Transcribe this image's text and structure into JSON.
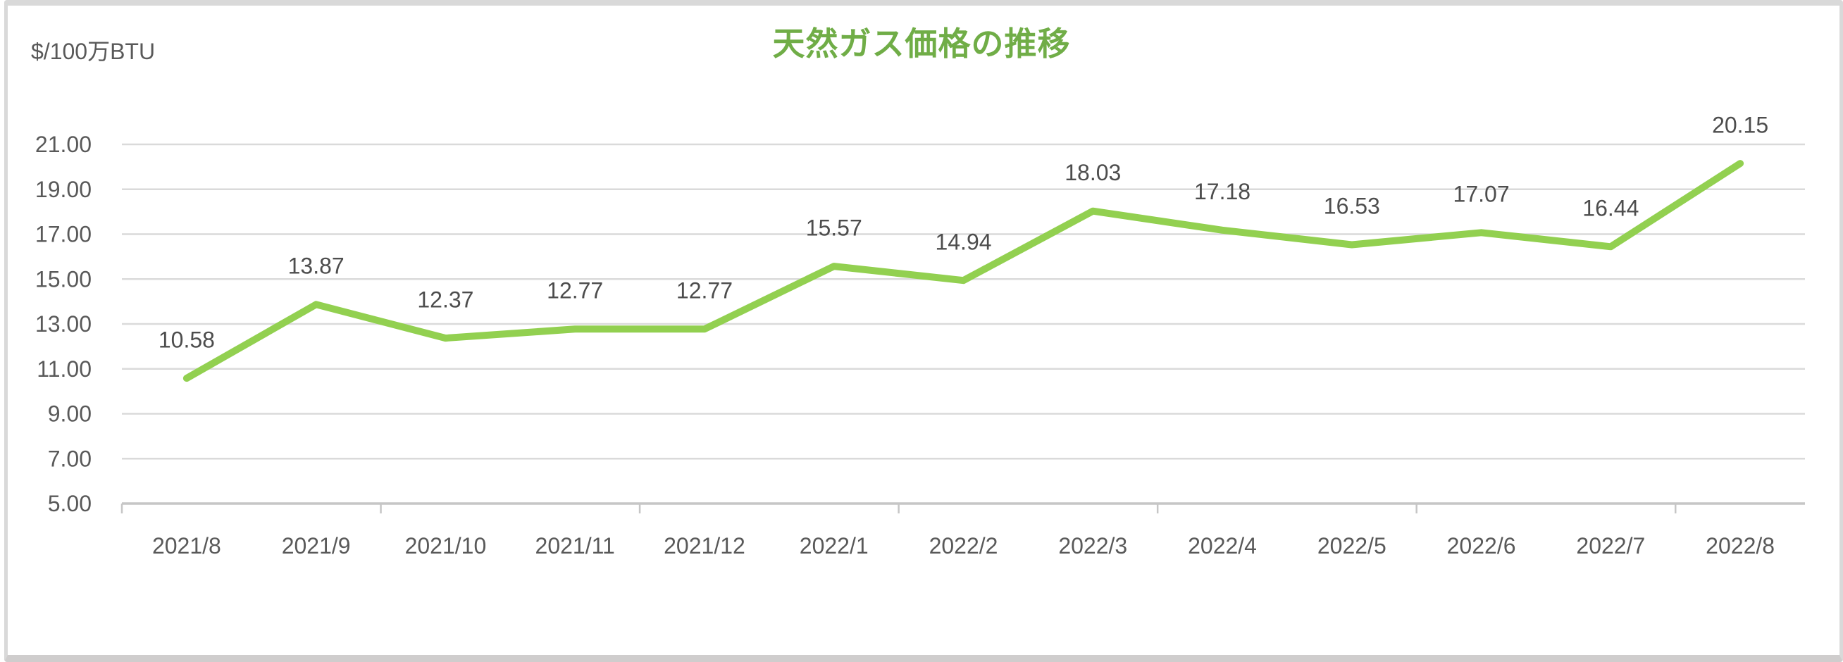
{
  "chart": {
    "title": "天然ガス価格の推移",
    "unit_label": "$/100万BTU"
  },
  "style": {
    "title_color": "#70AD47",
    "line_color": "#92D050",
    "text_color": "#595959",
    "data_label_color": "#4d4d4d",
    "gridline_color": "#DADADA",
    "axis_color": "#C6C6C6",
    "frame_border_color": "#D9D9D9",
    "frame_bottom_bar_color": "#CFCDCD"
  },
  "chart_data": {
    "type": "line",
    "title": "天然ガス価格の推移",
    "xlabel": "",
    "ylabel": "$/100万BTU",
    "categories": [
      "2021/8",
      "2021/9",
      "2021/10",
      "2021/11",
      "2021/12",
      "2022/1",
      "2022/2",
      "2022/3",
      "2022/4",
      "2022/5",
      "2022/6",
      "2022/7",
      "2022/8"
    ],
    "values": [
      10.58,
      13.87,
      12.37,
      12.77,
      12.77,
      15.57,
      14.94,
      18.03,
      17.18,
      16.53,
      17.07,
      16.44,
      20.15
    ],
    "data_labels": [
      "10.58",
      "13.87",
      "12.37",
      "12.77",
      "12.77",
      "15.57",
      "14.94",
      "18.03",
      "17.18",
      "16.53",
      "17.07",
      "16.44",
      "20.15"
    ],
    "y_ticks": [
      21,
      19,
      17,
      15,
      13,
      11,
      9,
      7,
      5
    ],
    "y_tick_labels": [
      "21.00",
      "19.00",
      "17.00",
      "15.00",
      "13.00",
      "11.00",
      "9.00",
      "7.00",
      "5.00"
    ],
    "ylim": [
      5,
      21
    ],
    "grid": true,
    "legend_position": "none",
    "data_label_position": "above"
  }
}
